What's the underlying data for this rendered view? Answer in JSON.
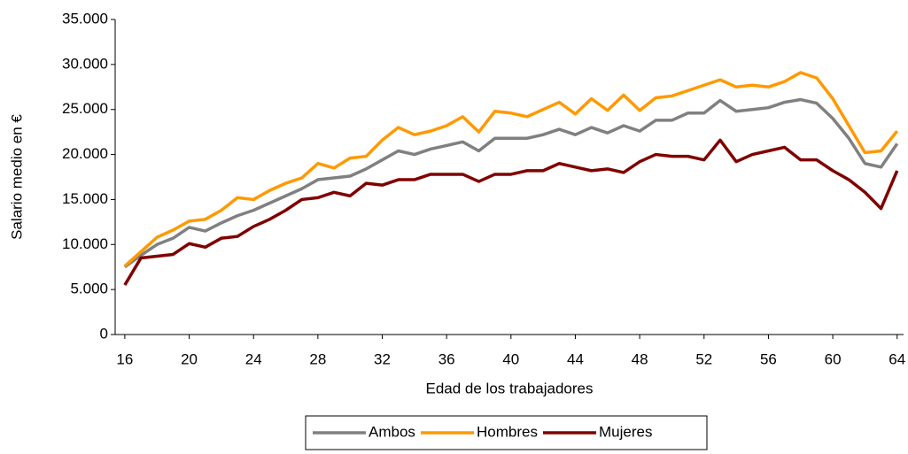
{
  "chart_data": {
    "type": "line",
    "x_label": "Edad de los trabajadores",
    "y_label": "Salario medio en €",
    "x": [
      16,
      17,
      18,
      19,
      20,
      21,
      22,
      23,
      24,
      25,
      26,
      27,
      28,
      29,
      30,
      31,
      32,
      33,
      34,
      35,
      36,
      37,
      38,
      39,
      40,
      41,
      42,
      43,
      44,
      45,
      46,
      47,
      48,
      49,
      50,
      51,
      52,
      53,
      54,
      55,
      56,
      57,
      58,
      59,
      60,
      61,
      62,
      63,
      64
    ],
    "series": [
      {
        "name": "Ambos",
        "color": "#808080",
        "values": [
          7500,
          8800,
          10000,
          10700,
          11900,
          11500,
          12400,
          13200,
          13800,
          14600,
          15400,
          16200,
          17200,
          17400,
          17600,
          18400,
          19400,
          20400,
          20000,
          20600,
          21000,
          21400,
          20400,
          21800,
          21800,
          21800,
          22200,
          22800,
          22200,
          23000,
          22400,
          23200,
          22600,
          23800,
          23800,
          24600,
          24600,
          26000,
          24800,
          25000,
          25200,
          25800,
          26100,
          25700,
          24000,
          21800,
          19000,
          18600,
          21200
        ]
      },
      {
        "name": "Hombres",
        "color": "#ff9900",
        "values": [
          7600,
          9200,
          10800,
          11600,
          12600,
          12800,
          13800,
          15200,
          15000,
          16000,
          16800,
          17400,
          19000,
          18500,
          19600,
          19800,
          21600,
          23000,
          22200,
          22600,
          23200,
          24200,
          22500,
          24800,
          24600,
          24200,
          25000,
          25800,
          24500,
          26200,
          24900,
          26600,
          24900,
          26300,
          26500,
          27100,
          27700,
          28300,
          27500,
          27700,
          27500,
          28100,
          29100,
          28500,
          26200,
          23200,
          20200,
          20400,
          22600
        ]
      },
      {
        "name": "Mujeres",
        "color": "#800000",
        "values": [
          5500,
          8500,
          8700,
          8900,
          10100,
          9700,
          10700,
          10900,
          12000,
          12800,
          13800,
          15000,
          15200,
          15800,
          15400,
          16800,
          16600,
          17200,
          17200,
          17800,
          17800,
          17800,
          17000,
          17800,
          17800,
          18200,
          18200,
          19000,
          18600,
          18200,
          18400,
          18000,
          19200,
          20000,
          19800,
          19800,
          19400,
          21600,
          19200,
          20000,
          20400,
          20800,
          19400,
          19400,
          18200,
          17200,
          15800,
          14000,
          18200
        ]
      }
    ],
    "xlim": [
      15.4,
      64.4
    ],
    "xticks": [
      16,
      20,
      24,
      28,
      32,
      36,
      40,
      44,
      48,
      52,
      56,
      60,
      64
    ],
    "ylim": [
      0,
      35000
    ],
    "yticks": [
      0,
      {
        "value": 5000,
        "label": "5.000"
      },
      {
        "value": 10000,
        "label": "10.000"
      },
      {
        "value": 15000,
        "label": "15.000"
      },
      {
        "value": 20000,
        "label": "20.000"
      },
      {
        "value": 25000,
        "label": "25.000"
      },
      {
        "value": 30000,
        "label": "30.000"
      },
      {
        "value": 35000,
        "label": "35.000"
      }
    ],
    "legend": "bottom",
    "grid": false
  }
}
